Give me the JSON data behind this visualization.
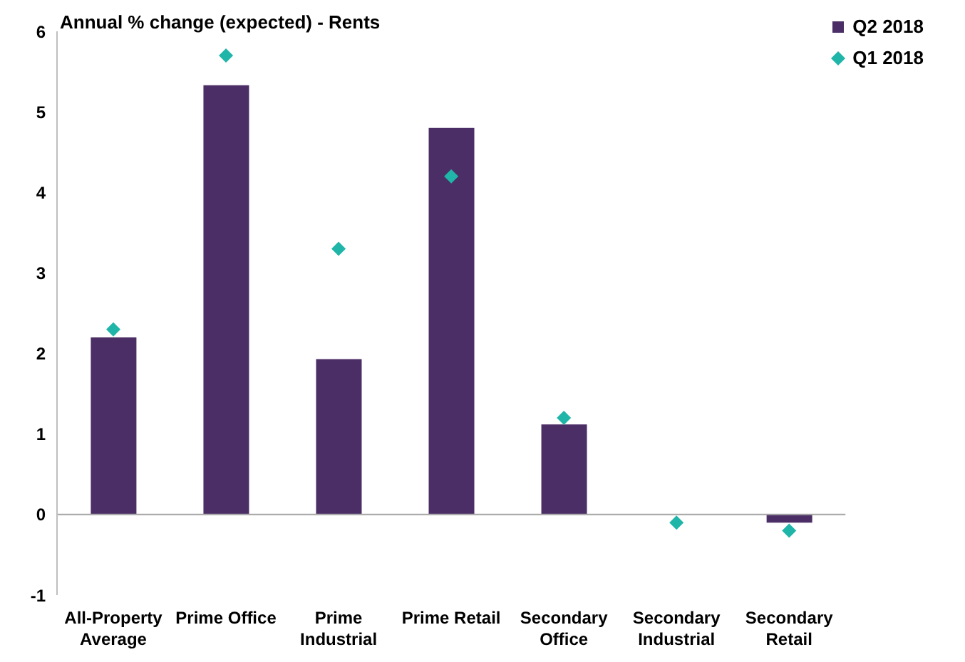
{
  "chart_data": {
    "type": "bar",
    "title": "Annual % change (expected) - Rents",
    "categories": [
      "All-Property Average",
      "Prime Office",
      "Prime Industrial",
      "Prime Retail",
      "Secondary Office",
      "Secondary Industrial",
      "Secondary Retail"
    ],
    "series": [
      {
        "name": "Q2 2018",
        "color": "#4b2e66",
        "values": [
          2.2,
          5.33,
          1.93,
          4.8,
          1.12,
          0,
          -0.1
        ]
      },
      {
        "name": "Q1 2018",
        "type": "scatter",
        "color": "#1fb5a8",
        "marker": "diamond",
        "values": [
          2.3,
          5.7,
          3.3,
          4.2,
          1.2,
          -0.1,
          -0.2
        ]
      }
    ],
    "ylim": [
      -1,
      6
    ],
    "yticks": [
      -1,
      0,
      1,
      2,
      3,
      4,
      5,
      6
    ],
    "legend": "top right"
  }
}
